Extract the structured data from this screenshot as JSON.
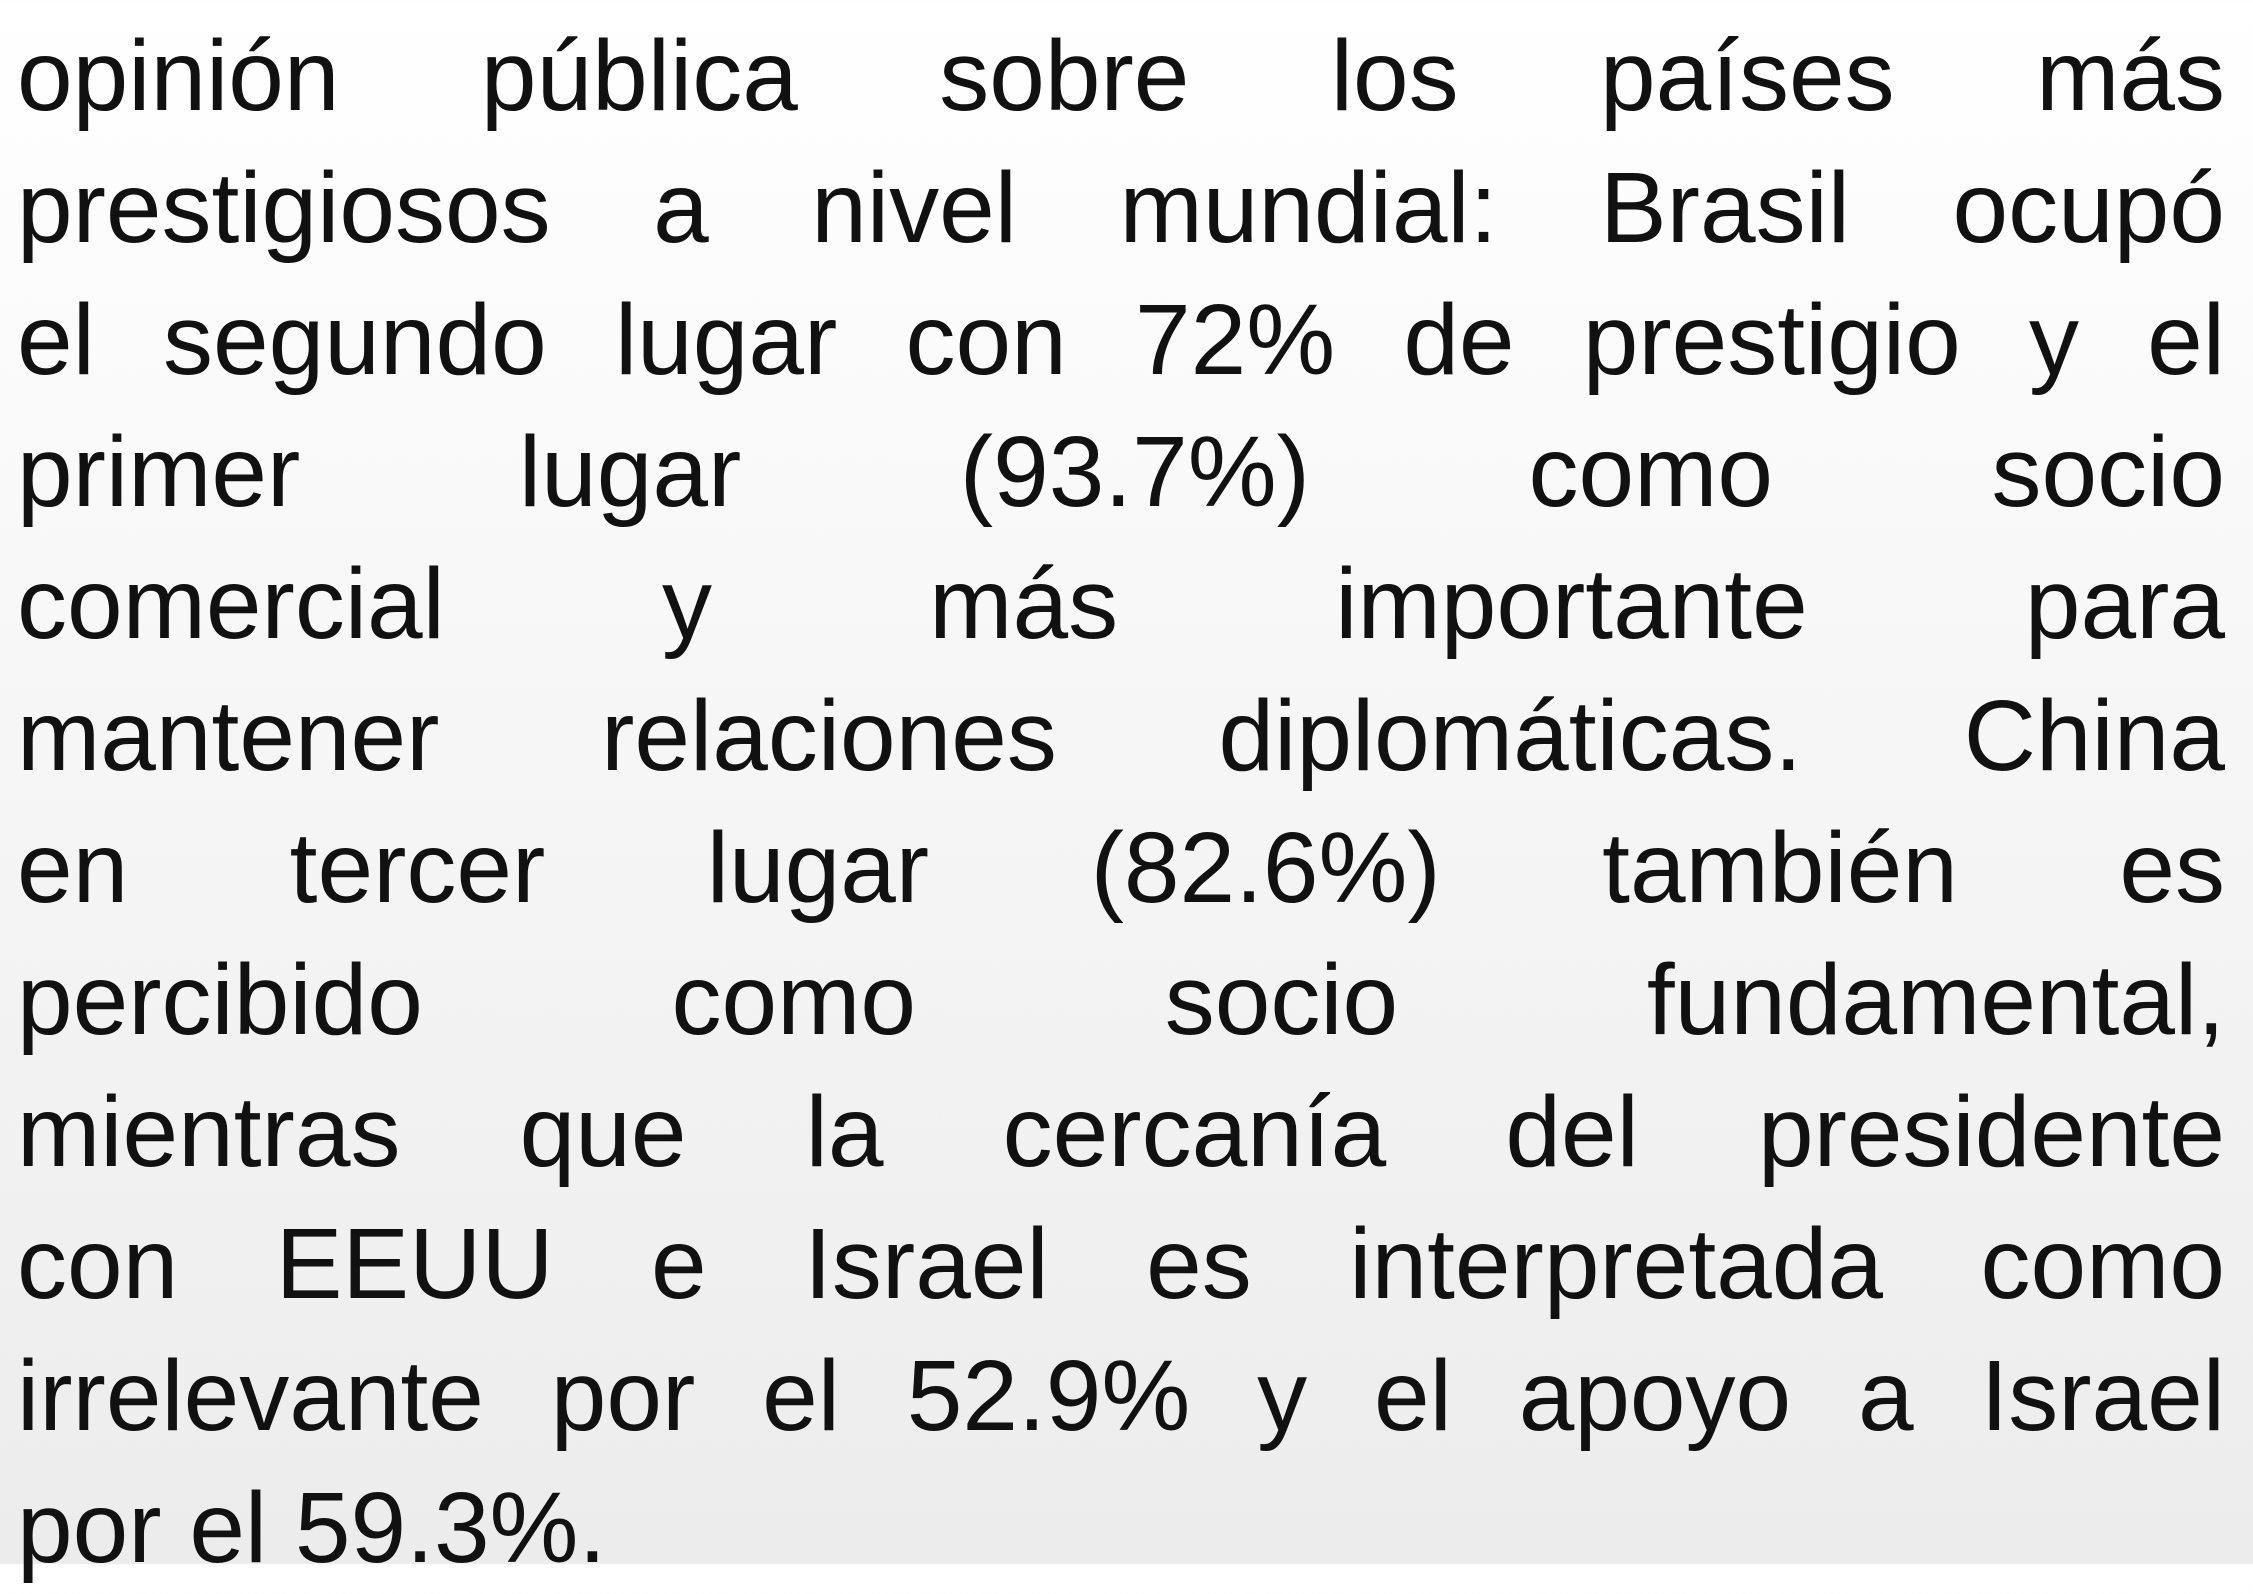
{
  "paragraph": {
    "lines": [
      "opinión pública sobre los países más",
      "prestigiosos a nivel mundial: Brasil ocupó",
      "el segundo lugar con 72% de prestigio y el",
      "primer lugar (93.7%) como socio",
      "comercial y más importante para",
      "mantener relaciones diplomáticas. China",
      "en tercer lugar (82.6%) también es",
      "percibido como socio fundamental,",
      "mientras que la cercanía del presidente",
      "con EEUU e Israel es interpretada como",
      "irrelevante por el 52.9% y el apoyo a Israel",
      "por el 59.3%."
    ]
  }
}
